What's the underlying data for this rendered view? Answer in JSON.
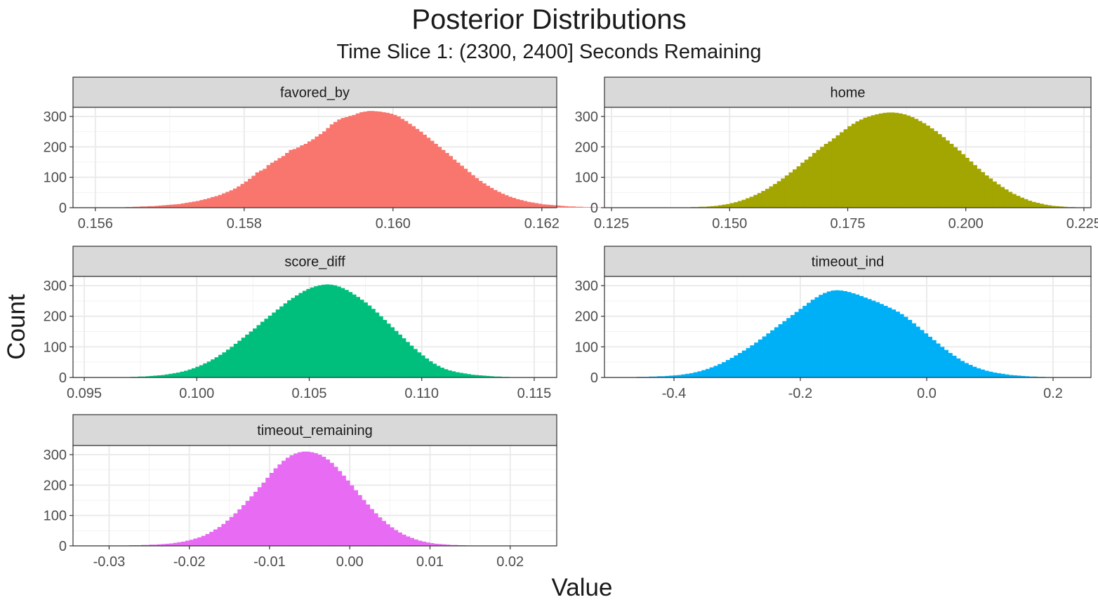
{
  "title": "Posterior Distributions",
  "subtitle": "Time Slice 1: (2300, 2400] Seconds Remaining",
  "xlabel": "Value",
  "ylabel": "Count",
  "chart_data": {
    "type": "bar",
    "subtype": "histogram-facets",
    "grid": true,
    "legend": "none",
    "facets": [
      {
        "name": "favored_by",
        "color": "#F8766D",
        "xlim": [
          0.1557,
          0.1622
        ],
        "xticks": [
          "0.156",
          "0.158",
          "0.160",
          "0.162"
        ],
        "ylim": [
          0,
          330
        ],
        "yticks": [
          "0",
          "100",
          "200",
          "300"
        ],
        "x_start": 0.1557,
        "binwidth": 5e-05,
        "counts": [
          0,
          0,
          0,
          0,
          0,
          0,
          0,
          0,
          0,
          0,
          0,
          0,
          0,
          0,
          2,
          2,
          3,
          3,
          4,
          4,
          5,
          5,
          6,
          7,
          8,
          9,
          10,
          11,
          12,
          14,
          16,
          18,
          20,
          22,
          25,
          28,
          31,
          35,
          38,
          42,
          47,
          52,
          57,
          63,
          70,
          78,
          86,
          95,
          105,
          116,
          122,
          128,
          140,
          148,
          155,
          163,
          170,
          180,
          190,
          193,
          198,
          205,
          210,
          218,
          225,
          234,
          242,
          251,
          262,
          274,
          282,
          290,
          295,
          298,
          302,
          305,
          310,
          314,
          316,
          318,
          318,
          317,
          316,
          314,
          312,
          309,
          305,
          300,
          292,
          285,
          276,
          268,
          259,
          250,
          240,
          230,
          220,
          210,
          200,
          190,
          180,
          170,
          158,
          148,
          138,
          128,
          117,
          107,
          97,
          88,
          80,
          72,
          65,
          58,
          52,
          46,
          41,
          36,
          32,
          28,
          25,
          22,
          19,
          17,
          15,
          13,
          11,
          10,
          9,
          8,
          7,
          6,
          5,
          4,
          4,
          3,
          3,
          2,
          2,
          2,
          1,
          1,
          1,
          0,
          0,
          0
        ]
      },
      {
        "name": "home",
        "color": "#A3A500",
        "xlim": [
          0.1235,
          0.2265
        ],
        "xticks": [
          "0.125",
          "0.150",
          "0.175",
          "0.200",
          "0.225"
        ],
        "ylim": [
          0,
          330
        ],
        "yticks": [
          "0",
          "100",
          "200",
          "300"
        ],
        "x_start": 0.1235,
        "binwidth": 0.00083,
        "counts": [
          0,
          0,
          0,
          0,
          0,
          0,
          0,
          0,
          0,
          0,
          0,
          0,
          0,
          0,
          0,
          0,
          0,
          0,
          1,
          1,
          1,
          1,
          2,
          2,
          3,
          3,
          4,
          5,
          6,
          8,
          10,
          12,
          15,
          18,
          22,
          26,
          31,
          36,
          42,
          48,
          55,
          62,
          70,
          78,
          87,
          96,
          106,
          116,
          126,
          136,
          148,
          158,
          168,
          180,
          190,
          200,
          210,
          218,
          228,
          238,
          248,
          258,
          268,
          276,
          284,
          290,
          296,
          300,
          304,
          307,
          310,
          312,
          313,
          313,
          312,
          310,
          307,
          303,
          298,
          292,
          285,
          278,
          270,
          261,
          252,
          242,
          232,
          221,
          210,
          199,
          188,
          176,
          164,
          152,
          140,
          128,
          117,
          106,
          96,
          86,
          77,
          68,
          60,
          52,
          45,
          39,
          33,
          28,
          23,
          19,
          16,
          13,
          10,
          8,
          6,
          5,
          4,
          3,
          2,
          2,
          1,
          1,
          1,
          0,
          0,
          0
        ]
      },
      {
        "name": "score_diff",
        "color": "#00BF7D",
        "xlim": [
          0.0945,
          0.116
        ],
        "xticks": [
          "0.095",
          "0.100",
          "0.105",
          "0.110",
          "0.115"
        ],
        "ylim": [
          0,
          330
        ],
        "yticks": [
          "0",
          "100",
          "200",
          "300"
        ],
        "x_start": 0.0945,
        "binwidth": 0.00017,
        "counts": [
          0,
          0,
          0,
          0,
          0,
          0,
          0,
          0,
          0,
          0,
          0,
          1,
          1,
          1,
          1,
          2,
          2,
          3,
          3,
          4,
          5,
          6,
          7,
          8,
          10,
          12,
          14,
          16,
          19,
          22,
          26,
          30,
          35,
          40,
          46,
          52,
          59,
          66,
          74,
          82,
          91,
          100,
          110,
          120,
          130,
          140,
          150,
          160,
          171,
          182,
          192,
          202,
          212,
          222,
          232,
          242,
          252,
          260,
          268,
          276,
          283,
          289,
          294,
          298,
          301,
          303,
          304,
          303,
          301,
          297,
          292,
          286,
          279,
          271,
          263,
          254,
          245,
          235,
          224,
          212,
          200,
          188,
          176,
          164,
          152,
          140,
          128,
          116,
          104,
          93,
          82,
          72,
          62,
          53,
          45,
          38,
          32,
          27,
          23,
          20,
          17,
          15,
          13,
          11,
          9,
          8,
          7,
          6,
          5,
          4,
          3,
          3,
          2,
          2,
          1,
          1,
          1,
          0,
          0,
          0
        ]
      },
      {
        "name": "timeout_ind",
        "color": "#00B0F6",
        "xlim": [
          -0.51,
          0.26
        ],
        "xticks": [
          "-0.4",
          "-0.2",
          "0.0",
          "0.2"
        ],
        "ylim": [
          0,
          330
        ],
        "yticks": [
          "0",
          "100",
          "200",
          "300"
        ],
        "x_start": -0.51,
        "binwidth": 0.0064,
        "counts": [
          0,
          0,
          0,
          1,
          1,
          1,
          1,
          1,
          2,
          2,
          2,
          3,
          3,
          4,
          4,
          5,
          6,
          7,
          8,
          10,
          12,
          14,
          17,
          20,
          24,
          28,
          33,
          38,
          44,
          50,
          57,
          64,
          72,
          80,
          88,
          96,
          105,
          114,
          124,
          134,
          144,
          154,
          164,
          174,
          184,
          194,
          204,
          214,
          224,
          234,
          244,
          254,
          262,
          270,
          276,
          281,
          284,
          285,
          284,
          282,
          279,
          275,
          271,
          266,
          261,
          256,
          251,
          246,
          240,
          234,
          228,
          222,
          215,
          207,
          198,
          188,
          177,
          166,
          155,
          144,
          133,
          122,
          111,
          100,
          90,
          80,
          71,
          62,
          54,
          47,
          41,
          35,
          30,
          26,
          22,
          19,
          16,
          14,
          12,
          10,
          8,
          7,
          6,
          5,
          4,
          3,
          3,
          2,
          2,
          1,
          1,
          1,
          1,
          0,
          0,
          0
        ]
      },
      {
        "name": "timeout_remaining",
        "color": "#E76BF3",
        "xlim": [
          -0.0345,
          0.0258
        ],
        "xticks": [
          "-0.03",
          "-0.02",
          "-0.01",
          "0.00",
          "0.01",
          "0.02"
        ],
        "ylim": [
          0,
          330
        ],
        "yticks": [
          "0",
          "100",
          "200",
          "300"
        ],
        "x_start": -0.0345,
        "binwidth": 0.0005,
        "counts": [
          0,
          0,
          0,
          0,
          0,
          0,
          0,
          0,
          0,
          0,
          1,
          1,
          1,
          1,
          2,
          2,
          2,
          3,
          3,
          4,
          4,
          5,
          6,
          7,
          8,
          10,
          12,
          14,
          17,
          20,
          24,
          28,
          33,
          39,
          46,
          54,
          62,
          72,
          83,
          95,
          107,
          120,
          134,
          148,
          163,
          178,
          193,
          208,
          224,
          240,
          255,
          268,
          280,
          290,
          298,
          304,
          308,
          310,
          310,
          308,
          305,
          300,
          293,
          284,
          273,
          260,
          246,
          231,
          215,
          199,
          183,
          167,
          151,
          136,
          121,
          107,
          94,
          82,
          71,
          61,
          52,
          44,
          37,
          31,
          26,
          21,
          17,
          14,
          11,
          9,
          7,
          6,
          5,
          4,
          3,
          3,
          2,
          2,
          1,
          1,
          1,
          1,
          0,
          0,
          0
        ]
      }
    ]
  }
}
